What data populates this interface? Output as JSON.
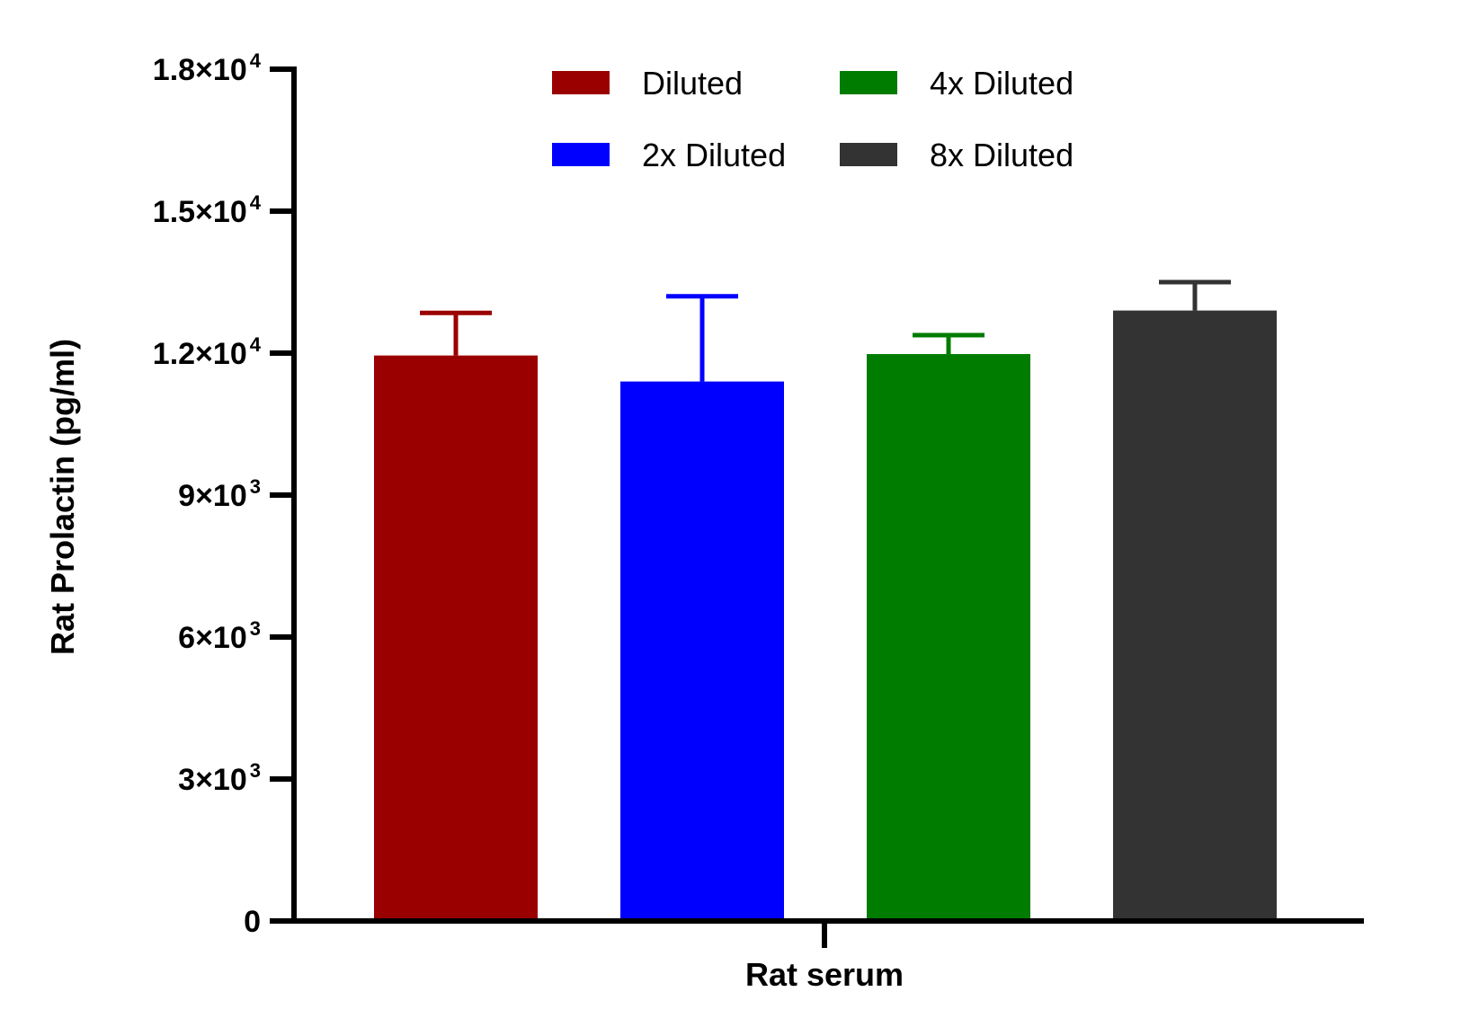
{
  "chart_data": {
    "type": "bar",
    "title": "",
    "xlabel": "Rat serum",
    "ylabel": "Rat Prolactin (pg/ml)",
    "ylim": [
      0,
      18000
    ],
    "grid": false,
    "legend_position": "top",
    "yticks": [
      {
        "value": 0,
        "mantissa": "0",
        "exp": ""
      },
      {
        "value": 3000,
        "mantissa": "3×10",
        "exp": "3"
      },
      {
        "value": 6000,
        "mantissa": "6×10",
        "exp": "3"
      },
      {
        "value": 9000,
        "mantissa": "9×10",
        "exp": "3"
      },
      {
        "value": 12000,
        "mantissa": "1.2×10",
        "exp": "4"
      },
      {
        "value": 15000,
        "mantissa": "1.5×10",
        "exp": "4"
      },
      {
        "value": 18000,
        "mantissa": "1.8×10",
        "exp": "4"
      }
    ],
    "categories": [
      "Rat serum"
    ],
    "series": [
      {
        "name": "Diluted",
        "color": "#9b0000",
        "value": 11950,
        "error": 900
      },
      {
        "name": "2x Diluted",
        "color": "#0000ff",
        "value": 11400,
        "error": 1800
      },
      {
        "name": "4x Diluted",
        "color": "#007c00",
        "value": 11980,
        "error": 400
      },
      {
        "name": "8x Diluted",
        "color": "#333333",
        "value": 12900,
        "error": 600
      }
    ]
  }
}
